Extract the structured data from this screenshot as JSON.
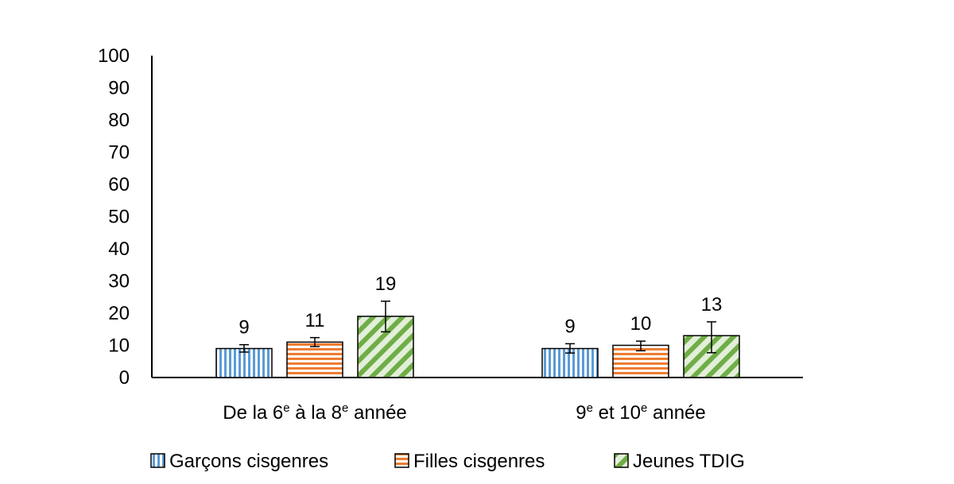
{
  "chart_data": {
    "type": "bar",
    "categories": [
      {
        "parts": [
          {
            "t": "De la 6"
          },
          {
            "sup": "e"
          },
          {
            "t": " à la 8"
          },
          {
            "sup": "e"
          },
          {
            "t": " année"
          }
        ]
      },
      {
        "parts": [
          {
            "t": "9"
          },
          {
            "sup": "e"
          },
          {
            "t": " et 10"
          },
          {
            "sup": "e"
          },
          {
            "t": " année"
          }
        ]
      }
    ],
    "series": [
      {
        "name": "Garçons cisgenres",
        "values": [
          9,
          9
        ],
        "err_low": [
          7.9,
          7.6
        ],
        "err_high": [
          10.2,
          10.5
        ],
        "color": "#5b9bd5",
        "pattern": "vertical"
      },
      {
        "name": "Filles cisgenres",
        "values": [
          11,
          10
        ],
        "err_low": [
          9.6,
          8.3
        ],
        "err_high": [
          12.4,
          11.3
        ],
        "color": "#ed7d31",
        "pattern": "horizontal"
      },
      {
        "name": "Jeunes TDIG",
        "values": [
          19,
          13
        ],
        "err_low": [
          14.2,
          7.7
        ],
        "err_high": [
          23.7,
          17.3
        ],
        "color": "#70ad47",
        "pattern": "diagonal"
      }
    ],
    "ylim": [
      0,
      100
    ],
    "yticks": [
      0,
      10,
      20,
      30,
      40,
      50,
      60,
      70,
      80,
      90,
      100
    ],
    "grid": false,
    "legend_position": "bottom"
  }
}
